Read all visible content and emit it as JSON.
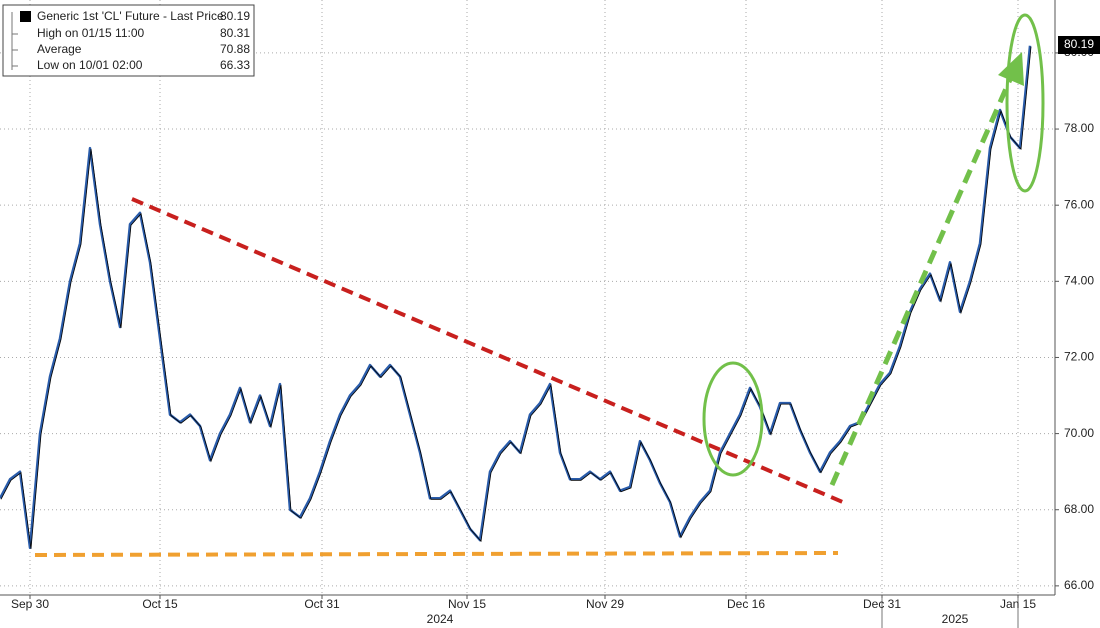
{
  "chart_data": {
    "type": "line",
    "legend": [
      {
        "label": "Generic 1st 'CL' Future - Last Price",
        "value": 80.19
      },
      {
        "label": "High on 01/15 11:00",
        "value": 80.31
      },
      {
        "label": "Average",
        "value": 70.88
      },
      {
        "label": "Low on 10/01 02:00",
        "value": 66.33
      }
    ],
    "last_price_tag": "80.19",
    "years": [
      "2024",
      "2025"
    ],
    "series": [
      {
        "name": "Generic 1st 'CL' Future - Last Price",
        "color": "#2a5caa",
        "x": [
          0,
          1,
          2,
          3,
          4,
          5,
          6,
          7,
          8,
          9,
          10,
          11,
          12,
          13,
          14,
          15,
          16,
          17,
          18,
          19,
          20,
          21,
          22,
          23,
          24,
          25,
          26,
          27,
          28,
          29,
          30,
          31,
          32,
          33,
          34,
          35,
          36,
          37,
          38,
          39,
          40,
          41,
          42,
          43,
          44,
          45,
          46,
          47,
          48,
          49,
          50,
          51,
          52,
          53,
          54,
          55,
          56,
          57,
          58,
          59,
          60,
          61,
          62,
          63,
          64,
          65,
          66,
          67,
          68,
          69,
          70,
          71,
          72,
          73,
          74,
          75,
          76,
          77,
          78,
          79,
          80,
          81,
          82,
          83,
          84,
          85,
          86,
          87,
          88,
          89,
          90,
          91,
          92,
          93,
          94,
          95,
          96,
          97,
          98,
          99,
          100,
          101,
          102,
          103
        ],
        "values": [
          68.3,
          68.8,
          69.0,
          67.0,
          70.0,
          71.5,
          72.5,
          74.0,
          75.0,
          77.5,
          75.5,
          74.0,
          72.8,
          75.5,
          75.8,
          74.5,
          72.5,
          70.5,
          70.3,
          70.5,
          70.2,
          69.3,
          70.0,
          70.5,
          71.2,
          70.3,
          71.0,
          70.2,
          71.3,
          68.0,
          67.8,
          68.3,
          69.0,
          69.8,
          70.5,
          71.0,
          71.3,
          71.8,
          71.5,
          71.8,
          71.5,
          70.5,
          69.5,
          68.3,
          68.3,
          68.5,
          68.0,
          67.5,
          67.2,
          69.0,
          69.5,
          69.8,
          69.5,
          70.5,
          70.8,
          71.3,
          69.5,
          68.8,
          68.8,
          69.0,
          68.8,
          69.0,
          68.5,
          68.6,
          69.8,
          69.3,
          68.7,
          68.2,
          67.3,
          67.8,
          68.2,
          68.5,
          69.5,
          70.0,
          70.5,
          71.2,
          70.7,
          70.0,
          70.8,
          70.8,
          70.1,
          69.5,
          69.0,
          69.5,
          69.8,
          70.2,
          70.3,
          70.8,
          71.3,
          71.6,
          72.3,
          73.2,
          73.8,
          74.2,
          73.5,
          74.5,
          73.2,
          74.0,
          75.0,
          77.5,
          78.5,
          77.8,
          77.5,
          80.19
        ]
      }
    ],
    "xlim": [
      0,
      105.5
    ],
    "xticks": [
      {
        "value": 3.0,
        "label": "Sep 30"
      },
      {
        "value": 16.0,
        "label": "Oct 15"
      },
      {
        "value": 32.2,
        "label": "Oct 31"
      },
      {
        "value": 46.7,
        "label": "Nov 15"
      },
      {
        "value": 60.5,
        "label": "Nov 29"
      },
      {
        "value": 74.6,
        "label": "Dec 16"
      },
      {
        "value": 88.2,
        "label": "Dec 31"
      },
      {
        "value": 101.8,
        "label": "Jan 15"
      }
    ],
    "ylim": [
      65.76,
      81.39
    ],
    "yticks": [
      {
        "value": 66,
        "label": "66.00"
      },
      {
        "value": 68,
        "label": "68.00"
      },
      {
        "value": 70,
        "label": "70.00"
      },
      {
        "value": 72,
        "label": "72.00"
      },
      {
        "value": 74,
        "label": "74.00"
      },
      {
        "value": 76,
        "label": "76.00"
      },
      {
        "value": 78,
        "label": "78.00"
      },
      {
        "value": 80,
        "label": "80.00"
      }
    ],
    "grid": true
  }
}
